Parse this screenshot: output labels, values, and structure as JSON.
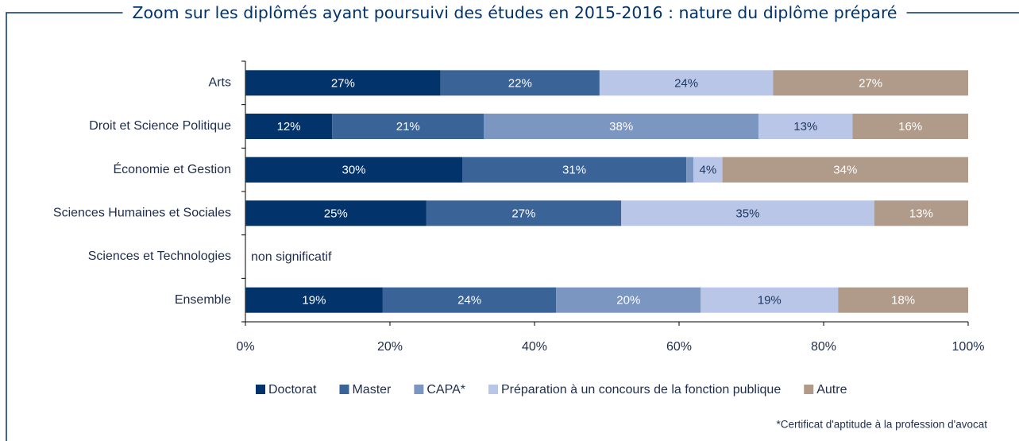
{
  "chart_data": {
    "type": "stacked-bar-horizontal",
    "title": "Zoom sur les diplômés ayant poursuivi des études en 2015-2016 : nature du diplôme préparé",
    "categories": [
      "Arts",
      "Droit et Science Politique",
      "Économie et Gestion",
      "Sciences Humaines et Sociales",
      "Sciences et Technologies",
      "Ensemble"
    ],
    "series": [
      {
        "name": "Doctorat",
        "color": "#02336b",
        "label_color": "#ffffff",
        "values": [
          27,
          12,
          30,
          25,
          null,
          19
        ],
        "value_labels": [
          "27%",
          "12%",
          "30%",
          "25%",
          null,
          "19%"
        ]
      },
      {
        "name": "Master",
        "color": "#3a6397",
        "label_color": "#ffffff",
        "values": [
          22,
          21,
          31,
          27,
          null,
          24
        ],
        "value_labels": [
          "22%",
          "21%",
          "31%",
          "27%",
          null,
          "24%"
        ]
      },
      {
        "name": "CAPA*",
        "color": "#7b97c1",
        "label_color": "#ffffff",
        "values": [
          null,
          38,
          1,
          null,
          null,
          20
        ],
        "value_labels": [
          null,
          "38%",
          null,
          null,
          null,
          "20%"
        ]
      },
      {
        "name": "Préparation à un concours de la fonction publique",
        "color": "#b9c6e7",
        "label_color": "#1f3864",
        "values": [
          24,
          13,
          4,
          35,
          null,
          19
        ],
        "value_labels": [
          "24%",
          "13%",
          "4%",
          "35%",
          null,
          "19%"
        ]
      },
      {
        "name": "Autre",
        "color": "#b09a8a",
        "label_color": "#ffffff",
        "values": [
          27,
          16,
          34,
          13,
          null,
          18
        ],
        "value_labels": [
          "27%",
          "16%",
          "34%",
          "13%",
          null,
          "18%"
        ]
      }
    ],
    "annotation": "non significatif",
    "xlim": [
      0,
      100
    ],
    "xticks": [
      {
        "value": 0,
        "label": "0%"
      },
      {
        "value": 20,
        "label": "20%"
      },
      {
        "value": 40,
        "label": "40%"
      },
      {
        "value": 60,
        "label": "60%"
      },
      {
        "value": 80,
        "label": "80%"
      },
      {
        "value": 100,
        "label": "100%"
      }
    ],
    "footnote": "*Certificat d'aptitude à la profession d'avocat"
  }
}
